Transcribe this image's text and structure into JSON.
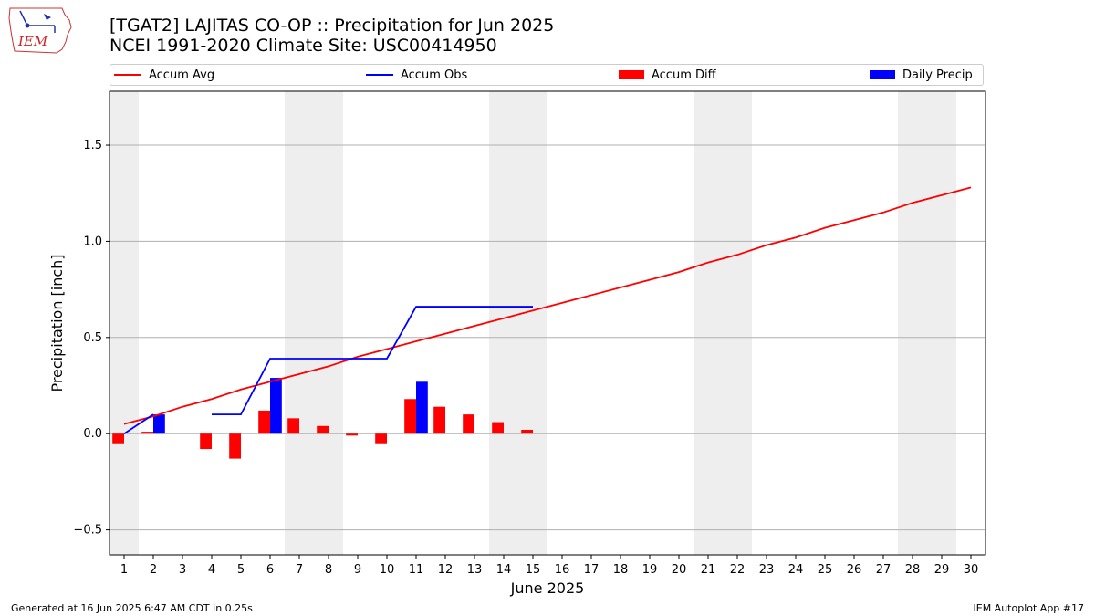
{
  "header": {
    "title_line1": "[TGAT2] LAJITAS CO-OP :: Precipitation for Jun 2025",
    "title_line2": "NCEI 1991-2020 Climate Site: USC00414950",
    "logo_text": "IEM"
  },
  "footer": {
    "generated": "Generated at 16 Jun 2025 6:47 AM CDT in 0.25s",
    "app": "IEM Autoplot App #17"
  },
  "colors": {
    "accum_avg": "#ff0000",
    "accum_obs": "#0000ff",
    "accum_diff": "#ff0000",
    "daily_precip": "#0000ff",
    "weekend_shade": "#eeeeee",
    "grid": "#b0b0b0"
  },
  "chart_data": {
    "type": "bar",
    "xlabel": "June 2025",
    "ylabel": "Precipitation [inch]",
    "x": [
      1,
      2,
      3,
      4,
      5,
      6,
      7,
      8,
      9,
      10,
      11,
      12,
      13,
      14,
      15,
      16,
      17,
      18,
      19,
      20,
      21,
      22,
      23,
      24,
      25,
      26,
      27,
      28,
      29,
      30
    ],
    "xlim": [
      0.5,
      30.5
    ],
    "ylim": [
      -0.63,
      1.78
    ],
    "yticks": [
      -0.5,
      0.0,
      0.5,
      1.0,
      1.5
    ],
    "ytick_labels": [
      "−0.5",
      "0.0",
      "0.5",
      "1.0",
      "1.5"
    ],
    "grid": true,
    "legend_position": "top",
    "weekend_shading": [
      [
        0.5,
        1.5
      ],
      [
        6.5,
        8.5
      ],
      [
        13.5,
        15.5
      ],
      [
        20.5,
        22.5
      ],
      [
        27.5,
        29.5
      ]
    ],
    "series": [
      {
        "name": "Accum Avg",
        "type": "line",
        "x": [
          1,
          2,
          3,
          4,
          5,
          6,
          7,
          8,
          9,
          10,
          11,
          12,
          13,
          14,
          15,
          16,
          17,
          18,
          19,
          20,
          21,
          22,
          23,
          24,
          25,
          26,
          27,
          28,
          29,
          30
        ],
        "values": [
          0.05,
          0.09,
          0.14,
          0.18,
          0.23,
          0.27,
          0.31,
          0.35,
          0.4,
          0.44,
          0.48,
          0.52,
          0.56,
          0.6,
          0.64,
          0.68,
          0.72,
          0.76,
          0.8,
          0.84,
          0.89,
          0.93,
          0.98,
          1.02,
          1.07,
          1.11,
          1.15,
          1.2,
          1.24,
          1.28
        ]
      },
      {
        "name": "Accum Obs",
        "type": "line",
        "segments": [
          {
            "x": [
              1,
              2
            ],
            "values": [
              0.0,
              0.1
            ]
          },
          {
            "x": [
              4,
              5,
              6,
              7,
              8,
              9,
              10,
              11,
              12,
              13,
              14,
              15
            ],
            "values": [
              0.1,
              0.1,
              0.39,
              0.39,
              0.39,
              0.39,
              0.39,
              0.66,
              0.66,
              0.66,
              0.66,
              0.66
            ]
          }
        ]
      },
      {
        "name": "Accum Diff",
        "type": "bar",
        "x": [
          1,
          2,
          4,
          5,
          6,
          7,
          8,
          9,
          10,
          11,
          12,
          13,
          14,
          15
        ],
        "values": [
          -0.05,
          0.01,
          -0.08,
          -0.13,
          0.12,
          0.08,
          0.04,
          -0.01,
          -0.05,
          0.18,
          0.14,
          0.1,
          0.06,
          0.02
        ]
      },
      {
        "name": "Daily Precip",
        "type": "bar",
        "x": [
          2,
          6,
          11
        ],
        "values": [
          0.1,
          0.29,
          0.27
        ]
      }
    ]
  }
}
